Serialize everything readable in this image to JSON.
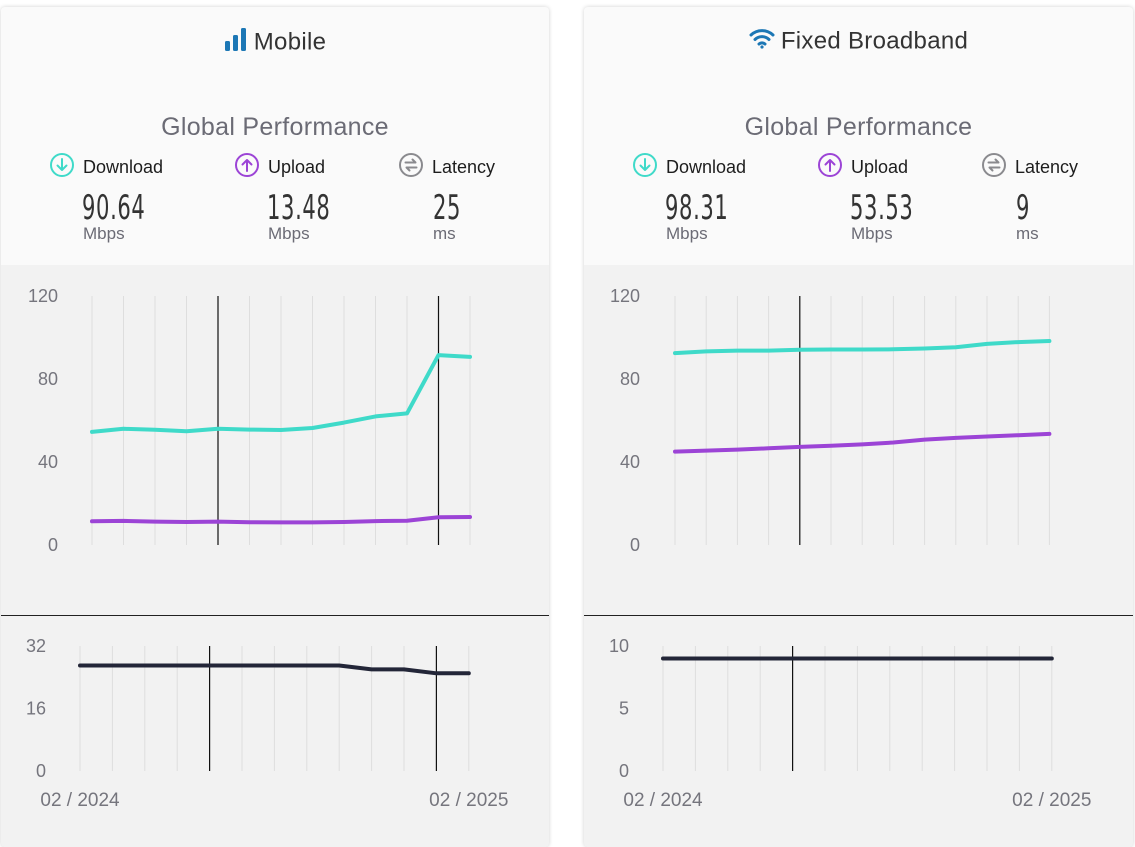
{
  "panels": [
    {
      "id": "mobile",
      "title": "Mobile",
      "title_icon": "signal-bars-icon",
      "section_title": "Global Performance",
      "metrics": [
        {
          "label": "Download",
          "value": "90.64",
          "unit": "Mbps",
          "icon": "download-arrow-icon",
          "color": "#3fdac9"
        },
        {
          "label": "Upload",
          "value": "13.48",
          "unit": "Mbps",
          "icon": "upload-arrow-icon",
          "color": "#9c44d6"
        },
        {
          "label": "Latency",
          "value": "25",
          "unit": "ms",
          "icon": "latency-icon",
          "color": "#8a8a8e"
        }
      ]
    },
    {
      "id": "fixed",
      "title": "Fixed Broadband",
      "title_icon": "wifi-icon",
      "section_title": "Global Performance",
      "metrics": [
        {
          "label": "Download",
          "value": "98.31",
          "unit": "Mbps",
          "icon": "download-arrow-icon",
          "color": "#3fdac9"
        },
        {
          "label": "Upload",
          "value": "53.53",
          "unit": "Mbps",
          "icon": "upload-arrow-icon",
          "color": "#9c44d6"
        },
        {
          "label": "Latency",
          "value": "9",
          "unit": "ms",
          "icon": "latency-icon",
          "color": "#8a8a8e"
        }
      ]
    }
  ],
  "chart_data": [
    {
      "panel": "mobile",
      "type": "line",
      "x": [
        "02/2024",
        "03/2024",
        "04/2024",
        "05/2024",
        "06/2024",
        "07/2024",
        "08/2024",
        "09/2024",
        "10/2024",
        "11/2024",
        "12/2024",
        "01/2025",
        "02/2025"
      ],
      "ylim": [
        0,
        120
      ],
      "yticks": [
        "0",
        "40",
        "80",
        "120"
      ],
      "markers": [
        "06/2024",
        "01/2025"
      ],
      "series": [
        {
          "key": "download",
          "color": "#3fdac9",
          "values": [
            54.5,
            56.0,
            55.5,
            54.8,
            56.0,
            55.6,
            55.4,
            56.4,
            59.0,
            62.0,
            63.4,
            91.5,
            90.64
          ]
        },
        {
          "key": "upload",
          "color": "#9c44d6",
          "values": [
            11.4,
            11.6,
            11.3,
            11.1,
            11.3,
            11.0,
            10.9,
            10.9,
            11.1,
            11.5,
            11.7,
            13.4,
            13.48
          ]
        }
      ]
    },
    {
      "panel": "mobile",
      "type": "line",
      "x": [
        "02/2024",
        "03/2024",
        "04/2024",
        "05/2024",
        "06/2024",
        "07/2024",
        "08/2024",
        "09/2024",
        "10/2024",
        "11/2024",
        "12/2024",
        "01/2025",
        "02/2025"
      ],
      "ylim": [
        0,
        32
      ],
      "yticks": [
        "0",
        "16",
        "32"
      ],
      "markers": [
        "06/2024",
        "01/2025"
      ],
      "x_labels": [
        "02 / 2024",
        "02 / 2025"
      ],
      "series": [
        {
          "key": "latency",
          "color": "#232638",
          "values": [
            27,
            27,
            27,
            27,
            27,
            27,
            27,
            27,
            27,
            26,
            26,
            25,
            25
          ]
        }
      ]
    },
    {
      "panel": "fixed",
      "type": "line",
      "x": [
        "02/2024",
        "03/2024",
        "04/2024",
        "05/2024",
        "06/2024",
        "07/2024",
        "08/2024",
        "09/2024",
        "10/2024",
        "11/2024",
        "12/2024",
        "01/2025",
        "02/2025"
      ],
      "ylim": [
        0,
        120
      ],
      "yticks": [
        "0",
        "40",
        "80",
        "120"
      ],
      "markers": [
        "06/2024"
      ],
      "series": [
        {
          "key": "download",
          "color": "#3fdac9",
          "values": [
            92.5,
            93.3,
            93.7,
            93.7,
            94.1,
            94.2,
            94.2,
            94.3,
            94.7,
            95.3,
            96.9,
            97.8,
            98.31
          ]
        },
        {
          "key": "upload",
          "color": "#9c44d6",
          "values": [
            45.0,
            45.5,
            46.0,
            46.6,
            47.3,
            47.8,
            48.5,
            49.4,
            50.8,
            51.6,
            52.3,
            52.9,
            53.53
          ]
        }
      ]
    },
    {
      "panel": "fixed",
      "type": "line",
      "x": [
        "02/2024",
        "03/2024",
        "04/2024",
        "05/2024",
        "06/2024",
        "07/2024",
        "08/2024",
        "09/2024",
        "10/2024",
        "11/2024",
        "12/2024",
        "01/2025",
        "02/2025"
      ],
      "ylim": [
        0,
        10
      ],
      "yticks": [
        "0",
        "5",
        "10"
      ],
      "markers": [
        "06/2024"
      ],
      "x_labels": [
        "02 / 2024",
        "02 / 2025"
      ],
      "series": [
        {
          "key": "latency",
          "color": "#232638",
          "values": [
            9,
            9,
            9,
            9,
            9,
            9,
            9,
            9,
            9,
            9,
            9,
            9,
            9
          ]
        }
      ]
    }
  ]
}
